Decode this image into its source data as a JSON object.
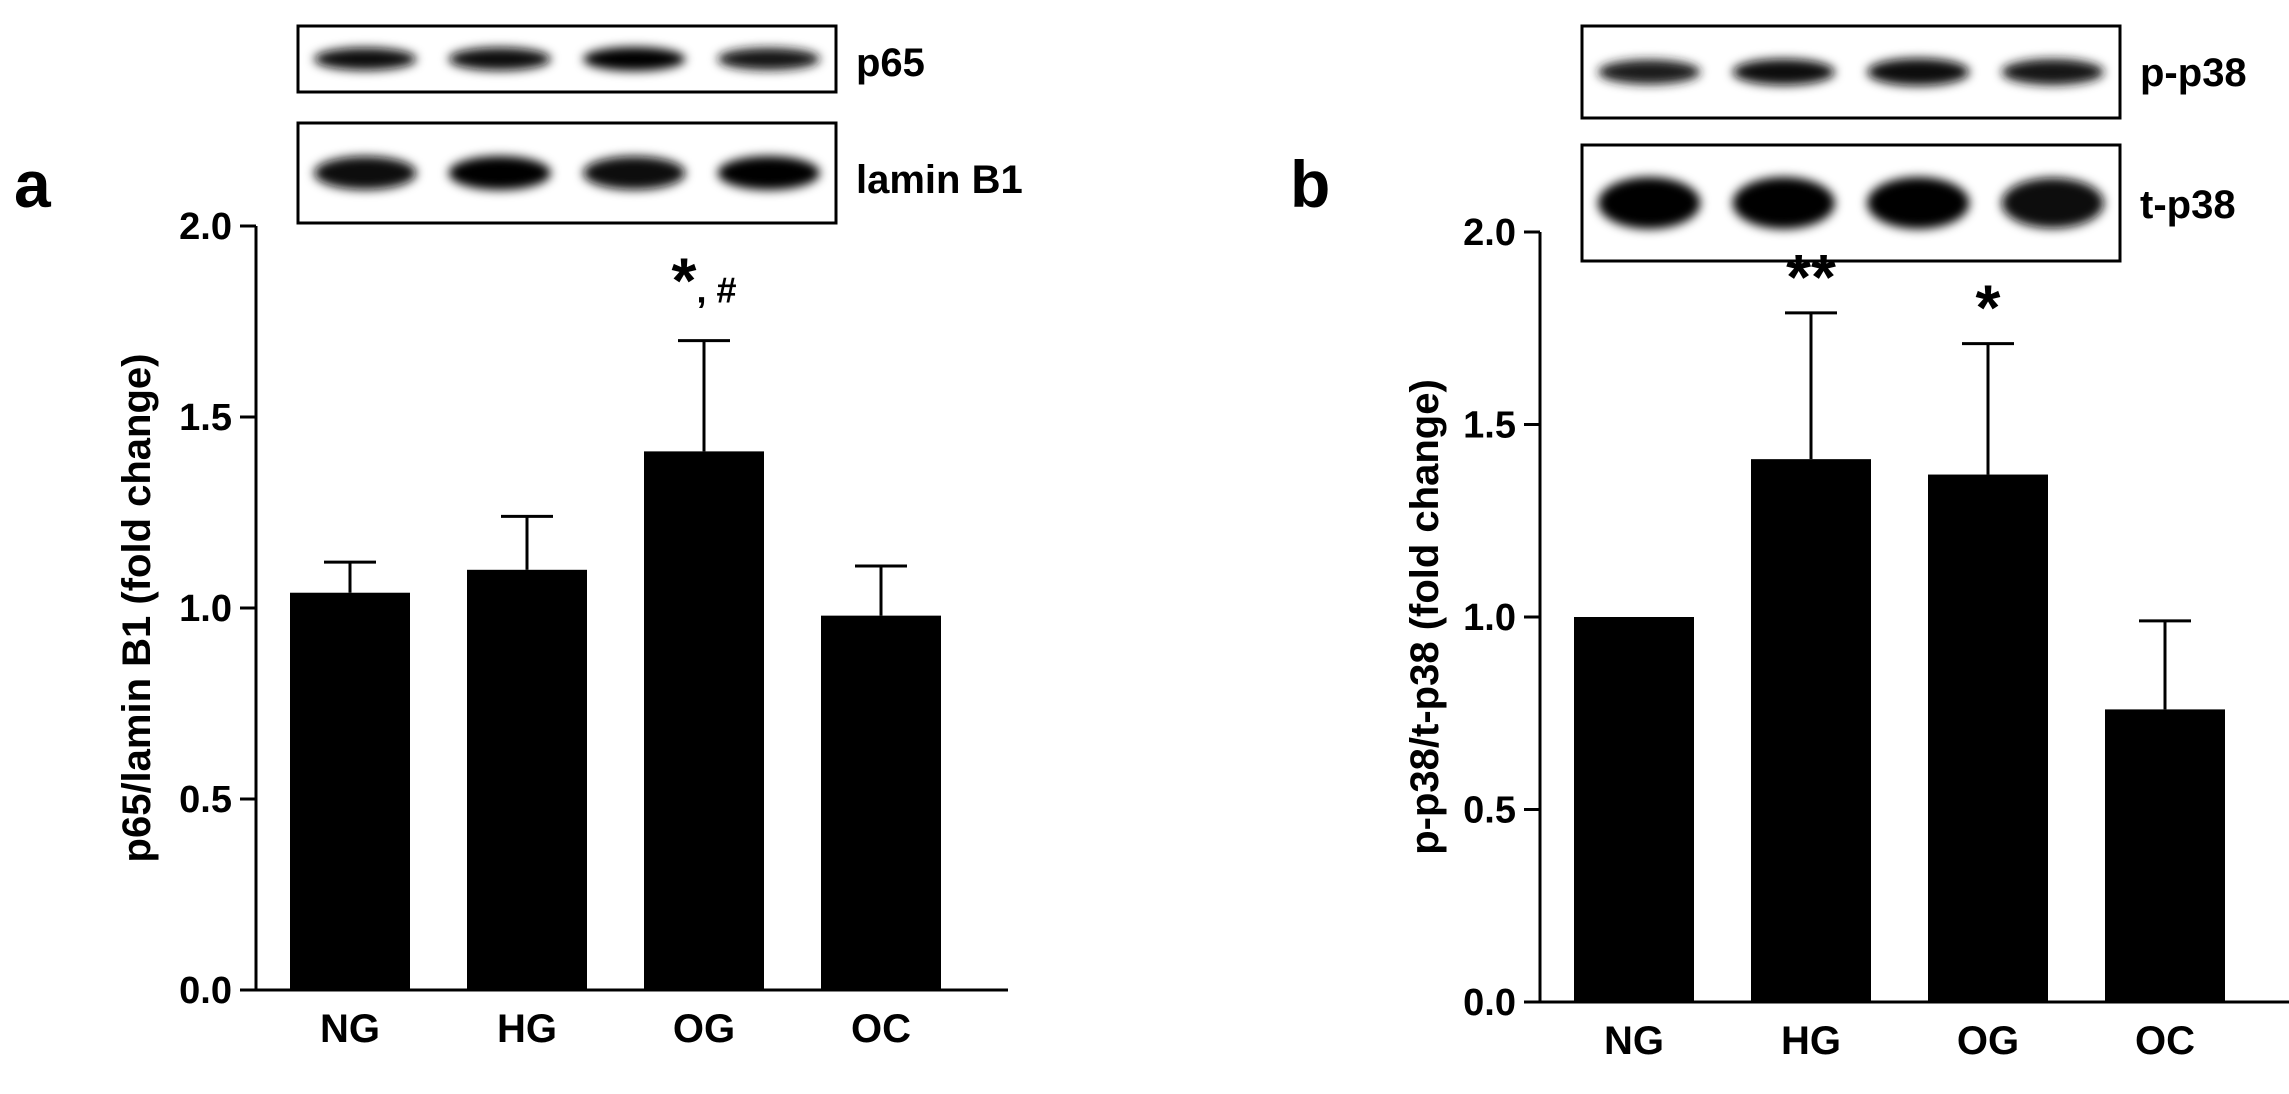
{
  "panels": [
    {
      "letter": "a",
      "blots": [
        {
          "label": "p65",
          "band_intensity": [
            0.8,
            0.85,
            1.0,
            0.75
          ]
        },
        {
          "label": "lamin B1",
          "band_intensity": [
            0.95,
            1.0,
            0.95,
            1.0
          ]
        }
      ]
    },
    {
      "letter": "b",
      "blots": [
        {
          "label": "p-p38",
          "band_intensity": [
            0.6,
            0.8,
            0.95,
            0.75
          ]
        },
        {
          "label": "t-p38",
          "band_intensity": [
            1.0,
            1.0,
            1.0,
            0.9
          ]
        }
      ]
    }
  ],
  "chart_data": [
    {
      "type": "bar",
      "categories": [
        "NG",
        "HG",
        "OG",
        "OC"
      ],
      "values": [
        1.04,
        1.1,
        1.41,
        0.98
      ],
      "error": [
        0.08,
        0.14,
        0.29,
        0.13
      ],
      "annotations": [
        "",
        "",
        "*, #",
        ""
      ],
      "ylabel": "p65/lamin B1 (fold change)",
      "ylim": [
        0,
        2.0
      ],
      "yticks": [
        "0.0",
        "0.5",
        "1.0",
        "1.5",
        "2.0"
      ],
      "bar_color": "#000000",
      "grid": false
    },
    {
      "type": "bar",
      "categories": [
        "NG",
        "HG",
        "OG",
        "OC"
      ],
      "values": [
        1.0,
        1.41,
        1.37,
        0.76
      ],
      "error": [
        0.0,
        0.38,
        0.34,
        0.23
      ],
      "annotations": [
        "",
        "**",
        "*",
        ""
      ],
      "ylabel": "p-p38/t-p38 (fold change)",
      "ylim": [
        0,
        2.0
      ],
      "yticks": [
        "0.0",
        "0.5",
        "1.0",
        "1.5",
        "2.0"
      ],
      "bar_color": "#000000",
      "grid": false
    }
  ]
}
